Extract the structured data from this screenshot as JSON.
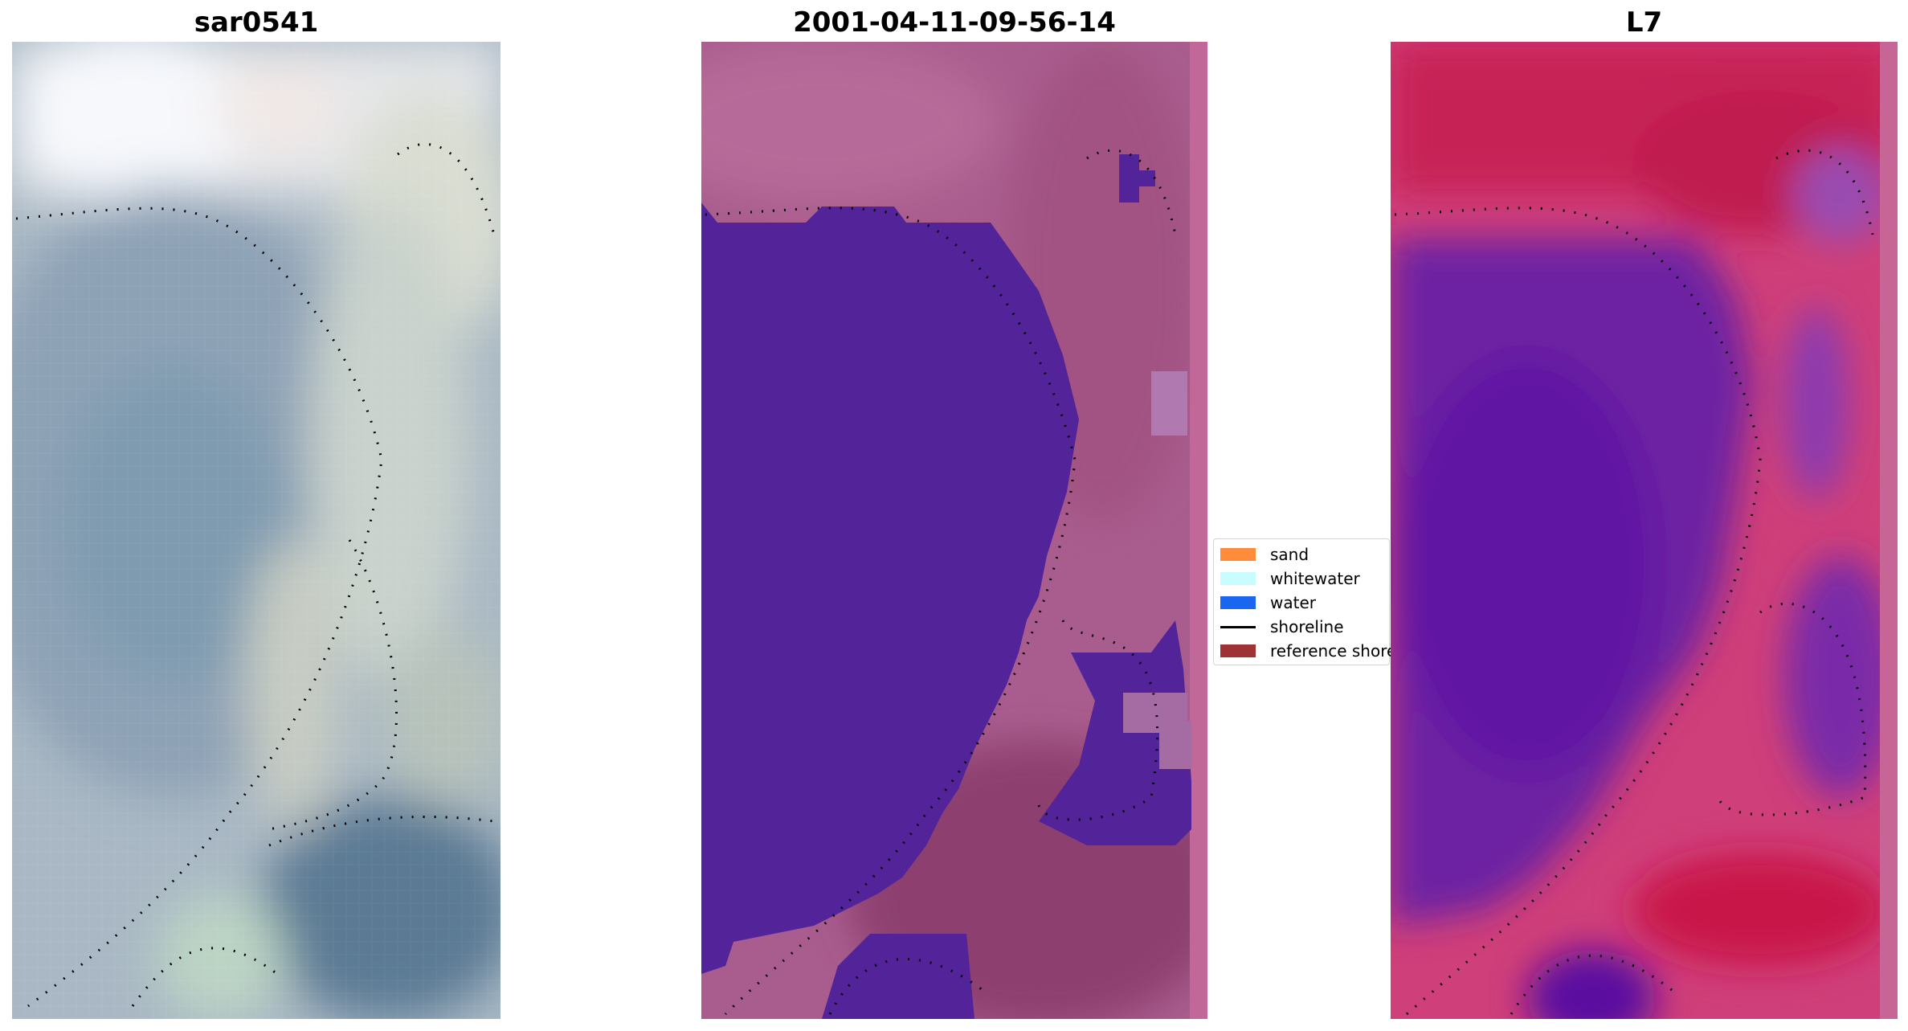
{
  "panels": [
    {
      "title": "sar0541"
    },
    {
      "title": "2001-04-11-09-56-14"
    },
    {
      "title": "L7"
    }
  ],
  "legend": {
    "items": [
      {
        "label": "sand",
        "color": "#ff8c3a",
        "kind": "patch"
      },
      {
        "label": "whitewater",
        "color": "#c8fcff",
        "kind": "patch"
      },
      {
        "label": "water",
        "color": "#1a66f0",
        "kind": "patch"
      },
      {
        "label": "shoreline",
        "color": "#000000",
        "kind": "line"
      },
      {
        "label": "reference shoreline",
        "color": "#9e3234",
        "kind": "patch"
      }
    ]
  }
}
